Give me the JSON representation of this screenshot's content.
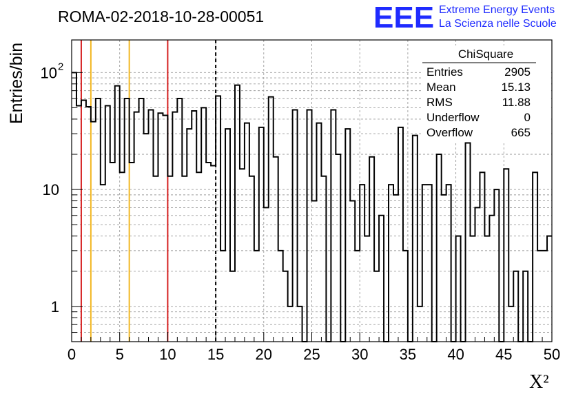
{
  "chart_data": {
    "type": "histogram",
    "title": "ROMA-02-2018-10-28-00051",
    "xlabel": "X²",
    "ylabel": "Entries/bin",
    "xlim": [
      0,
      50
    ],
    "ylim": [
      0.5,
      190
    ],
    "yscale": "log",
    "grid": true,
    "x_ticks": [
      "0",
      "5",
      "10",
      "15",
      "20",
      "25",
      "30",
      "35",
      "40",
      "45",
      "50"
    ],
    "y_ticks": [
      {
        "value": 1,
        "label": "1"
      },
      {
        "value": 10,
        "label": "10"
      },
      {
        "value": 100,
        "label": "10",
        "exp": "2"
      }
    ],
    "bin_width": 0.5,
    "bin_start": 0,
    "values": [
      100,
      52,
      58,
      51,
      38,
      60,
      11,
      52,
      17,
      77,
      14,
      60,
      17,
      46,
      60,
      30,
      48,
      13,
      45,
      43,
      13,
      46,
      60,
      13,
      33,
      47,
      14,
      50,
      17,
      16,
      63,
      3,
      33,
      2,
      78,
      15,
      37,
      13,
      3,
      34,
      7,
      62,
      19,
      3,
      2,
      1,
      48,
      1,
      0.4,
      48,
      8,
      37,
      13,
      0.4,
      48,
      20,
      0.4,
      33,
      8,
      3,
      11,
      4,
      19,
      2,
      6,
      0.4,
      11,
      9,
      34,
      3,
      0.4,
      29,
      1,
      11,
      11,
      0.4,
      20,
      9,
      11,
      0.4,
      4,
      0.4,
      25,
      4,
      7,
      14,
      4,
      6,
      10,
      0.4,
      15,
      1,
      2,
      0.4,
      2,
      0.4,
      14,
      3,
      3,
      4
    ],
    "reference_lines": [
      {
        "x": 1,
        "color": "#d62020",
        "style": "solid"
      },
      {
        "x": 2,
        "color": "#f2b722",
        "style": "solid"
      },
      {
        "x": 6,
        "color": "#f2b722",
        "style": "solid"
      },
      {
        "x": 10,
        "color": "#d62020",
        "style": "solid"
      },
      {
        "x": 15,
        "color": "#000000",
        "style": "dashed"
      }
    ],
    "stats_box": {
      "title": "ChiSquare",
      "rows": [
        {
          "label": "Entries",
          "value": "2905"
        },
        {
          "label": "Mean",
          "value": "15.13"
        },
        {
          "label": "RMS",
          "value": "11.88"
        },
        {
          "label": "Underflow",
          "value": "0"
        },
        {
          "label": "Overflow",
          "value": "665"
        }
      ]
    }
  },
  "logo": {
    "mark": "EEE",
    "line1": "Extreme Energy Events",
    "line2": "La Scienza nelle Scuole",
    "color": "#1f2bff"
  }
}
